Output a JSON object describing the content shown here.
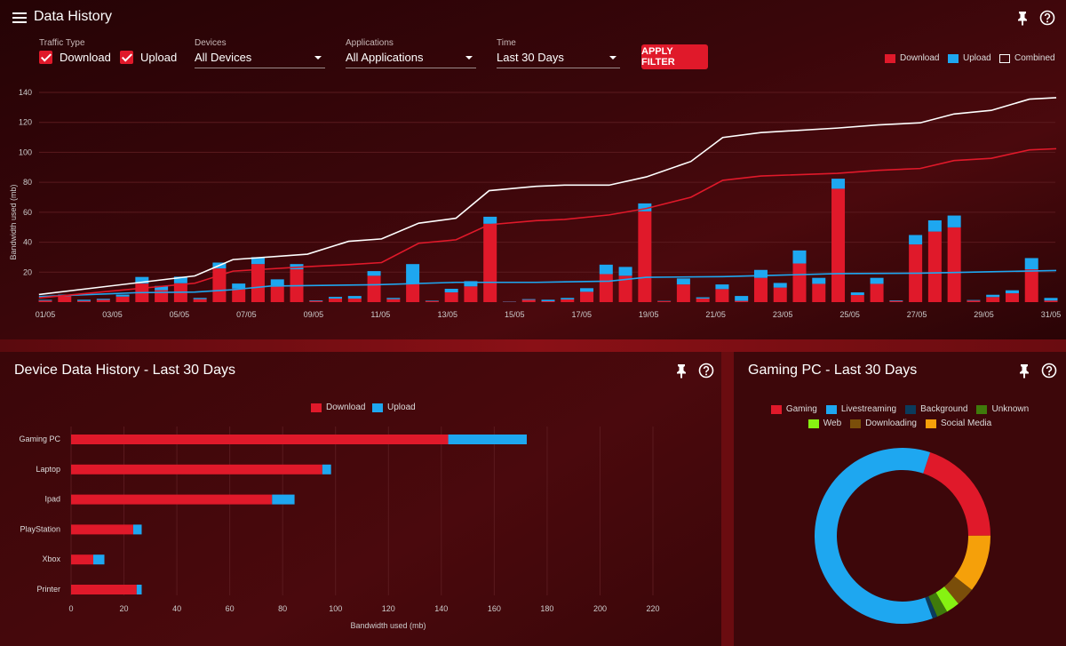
{
  "header": {
    "title": "Data History"
  },
  "filters": {
    "traffic_type_label": "Traffic Type",
    "download_label": "Download",
    "download_checked": true,
    "upload_label": "Upload",
    "upload_checked": true,
    "devices_label": "Devices",
    "devices_value": "All Devices",
    "applications_label": "Applications",
    "applications_value": "All Applications",
    "time_label": "Time",
    "time_value": "Last 30 Days",
    "apply_label": "APPLY FILTER"
  },
  "colors": {
    "download": "#e0192a",
    "upload": "#1ea7f0",
    "combined": "#ffffff"
  },
  "chart_data": [
    {
      "type": "bar+line",
      "ylabel": "Bandwidth used (mb)",
      "ylim": [
        0,
        140
      ],
      "yticks": [
        20,
        40,
        60,
        80,
        100,
        120,
        140
      ],
      "xlim": [
        1,
        31
      ],
      "xticks": [
        "01/05",
        "03/05",
        "05/05",
        "07/05",
        "09/05",
        "11/05",
        "13/05",
        "15/05",
        "17/05",
        "19/05",
        "21/05",
        "23/05",
        "25/05",
        "27/05",
        "29/05",
        "31/05"
      ],
      "legend": [
        "Download",
        "Upload",
        "Combined"
      ],
      "legend_position": "top-right",
      "bars": {
        "download": [
          1,
          4,
          0.8,
          1.5,
          3.7,
          12.4,
          8,
          12.6,
          2,
          22.5,
          9,
          25.4,
          11.2,
          21.9,
          0.8,
          2.4,
          2.4,
          17.6,
          2,
          12.6,
          0.7,
          6.5,
          10.5,
          52.3,
          0.2,
          1.5,
          0.6,
          1.8,
          6.9,
          18.7,
          17.6,
          60.6,
          0.6,
          11.8,
          2.4,
          8.7,
          0.8,
          16.2,
          9.7,
          25.8,
          12.2,
          75.7,
          4.7,
          12.2,
          0.8,
          38.5,
          47.1,
          49.9,
          1,
          3.4,
          5.9,
          21.9,
          1
        ],
        "upload": [
          0.5,
          1,
          0.8,
          0.7,
          1.3,
          4.4,
          2.8,
          4.4,
          0.8,
          3.9,
          3.4,
          4.6,
          4,
          3.5,
          0.4,
          1.1,
          1.7,
          3.1,
          0.8,
          12.8,
          0.3,
          2.4,
          3.5,
          4.7,
          0.2,
          0.5,
          1,
          1,
          2.4,
          6.3,
          5.9,
          5.3,
          0.2,
          4,
          0.8,
          3.1,
          3.3,
          5.3,
          3.1,
          8.7,
          4,
          6.7,
          1.8,
          4,
          0.4,
          6.3,
          7.5,
          7.9,
          0.4,
          1.5,
          2,
          7.5,
          1.8
        ]
      },
      "lines": {
        "combined": [
          [
            0.81,
            5.1
          ],
          [
            5.46,
            17.5
          ],
          [
            6.6,
            28.4
          ],
          [
            8.82,
            32
          ],
          [
            10.05,
            40.6
          ],
          [
            11.03,
            42.2
          ],
          [
            12.14,
            52.7
          ],
          [
            13.25,
            56
          ],
          [
            14.24,
            74.4
          ],
          [
            15.64,
            77.3
          ],
          [
            16.49,
            78.1
          ],
          [
            17.82,
            78.1
          ],
          [
            18.93,
            83.6
          ],
          [
            20.26,
            93.9
          ],
          [
            21.21,
            109.9
          ],
          [
            22.35,
            113.2
          ],
          [
            24.63,
            116.2
          ],
          [
            25.85,
            118.3
          ],
          [
            27.1,
            119.7
          ],
          [
            28.11,
            125.6
          ],
          [
            29.22,
            128
          ],
          [
            30.36,
            135.5
          ],
          [
            31.16,
            136.5
          ]
        ],
        "download": [
          [
            0.81,
            2.8
          ],
          [
            5.46,
            12.6
          ],
          [
            6.6,
            20.7
          ],
          [
            8.82,
            23.7
          ],
          [
            10.05,
            25
          ],
          [
            11.03,
            26.4
          ],
          [
            12.14,
            39.3
          ],
          [
            13.25,
            41.6
          ],
          [
            14.24,
            51.7
          ],
          [
            15.64,
            54.4
          ],
          [
            16.49,
            55.2
          ],
          [
            17.82,
            58.2
          ],
          [
            18.93,
            62.5
          ],
          [
            20.26,
            70
          ],
          [
            21.21,
            81.3
          ],
          [
            22.35,
            84.2
          ],
          [
            24.63,
            86
          ],
          [
            25.85,
            88
          ],
          [
            27.1,
            89.2
          ],
          [
            28.11,
            94.5
          ],
          [
            29.22,
            96
          ],
          [
            30.36,
            101.6
          ],
          [
            31.16,
            102.4
          ]
        ],
        "upload": [
          [
            0.81,
            3.7
          ],
          [
            3.73,
            6.3
          ],
          [
            5.46,
            6.7
          ],
          [
            6.6,
            8.3
          ],
          [
            7.71,
            10.7
          ],
          [
            10.87,
            11.6
          ],
          [
            13.25,
            13.2
          ],
          [
            15.64,
            13.2
          ],
          [
            17.82,
            14
          ],
          [
            18.93,
            16.6
          ],
          [
            21.21,
            17
          ],
          [
            24.63,
            19
          ],
          [
            27.1,
            19.3
          ],
          [
            29.22,
            20.3
          ],
          [
            31.16,
            21.1
          ]
        ]
      }
    },
    {
      "type": "bar",
      "orientation": "horizontal",
      "title": "Device Data History - Last 30 Days",
      "xlabel": "Bandwidth used (mb)",
      "xlim": [
        0,
        240
      ],
      "xticks": [
        0,
        20,
        40,
        60,
        80,
        100,
        120,
        140,
        160,
        180,
        200,
        220
      ],
      "legend": [
        "Download",
        "Upload"
      ],
      "legend_position": "top",
      "categories": [
        "Gaming PC",
        "Laptop",
        "Ipad",
        "PlayStation",
        "Xbox",
        "Printer"
      ],
      "series": [
        {
          "name": "Download",
          "values": [
            142.6,
            95,
            76,
            23.5,
            8.4,
            24.8
          ]
        },
        {
          "name": "Upload",
          "values": [
            29.7,
            3.3,
            8.5,
            3.2,
            4.2,
            1.9
          ]
        }
      ]
    },
    {
      "type": "pie",
      "variant": "donut",
      "title": "Gaming PC - Last 30 Days",
      "legend_position": "top",
      "slices": [
        {
          "name": "Gaming",
          "value": 19.9,
          "color": "#e0192a"
        },
        {
          "name": "Livestreaming",
          "value": 60.7,
          "color": "#1ea7f0"
        },
        {
          "name": "Background",
          "value": 0.9,
          "color": "#0b3b5c"
        },
        {
          "name": "Unknown",
          "value": 2.0,
          "color": "#3f7a0b"
        },
        {
          "name": "Web",
          "value": 2.5,
          "color": "#86f212"
        },
        {
          "name": "Downloading",
          "value": 3.5,
          "color": "#7a4e0a"
        },
        {
          "name": "Social Media",
          "value": 10.6,
          "color": "#f5a00a"
        }
      ]
    }
  ]
}
